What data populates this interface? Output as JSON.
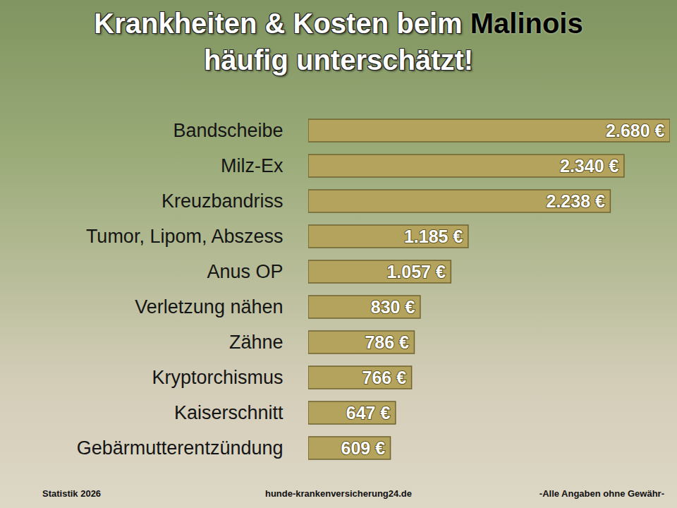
{
  "chart_data": {
    "type": "bar",
    "orientation": "horizontal",
    "title": "Krankheiten & Kosten beim Malinois",
    "subtitle": "häufig unterschätzt!",
    "annotations": [
      "Statistik 2026",
      "hunde-krankenversicherung24.de",
      "-Alle Angaben ohne Gewähr-"
    ],
    "categories": [
      "Bandscheibe",
      "Milz-Ex",
      "Kreuzbandriss",
      "Tumor, Lipom, Abszess",
      "Anus OP",
      "Verletzung nähen",
      "Zähne",
      "Kryptorchismus",
      "Kaiserschnitt",
      "Gebärmutterentzündung"
    ],
    "values": [
      2680,
      2340,
      2238,
      1185,
      1057,
      830,
      786,
      766,
      647,
      609
    ],
    "value_labels": [
      "2.680 €",
      "2.340 €",
      "2.238 €",
      "1.185 €",
      "1.057 €",
      "830 €",
      "786 €",
      "766 €",
      "647 €",
      "609 €"
    ],
    "data_labels": true,
    "color": "#b3a35c",
    "xlim": [
      0,
      2680
    ],
    "tick_labels": "y",
    "grid": false
  }
}
